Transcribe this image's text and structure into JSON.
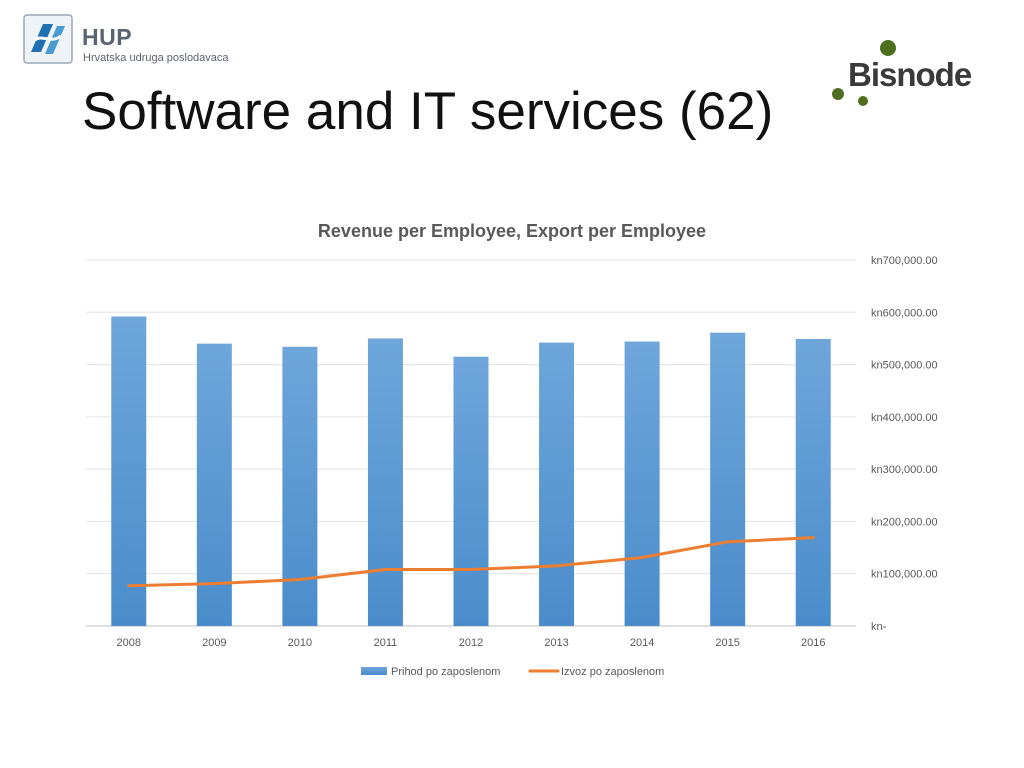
{
  "header": {
    "hup_name": "HUP",
    "hup_subtitle": "Hrvatska udruga poslodavaca",
    "bisnode_logo_text": "Bisnode",
    "page_title": "Software and IT services (62)"
  },
  "colors": {
    "bar": "#5b9bd5",
    "line": "#ed7d31",
    "bisnode_green": "#4f6e1f"
  },
  "chart_data": {
    "type": "bar",
    "title": "Revenue per Employee, Export per Employee",
    "categories": [
      "2008",
      "2009",
      "2010",
      "2011",
      "2012",
      "2013",
      "2014",
      "2015",
      "2016"
    ],
    "series": [
      {
        "name": "Prihod po zaposlenom",
        "type": "bar",
        "values": [
          592000,
          540000,
          534000,
          550000,
          515000,
          542000,
          544000,
          561000,
          549000
        ]
      },
      {
        "name": "Izvoz po zaposlenom",
        "type": "line",
        "values": [
          77000,
          81000,
          89000,
          108000,
          108000,
          115000,
          131000,
          161000,
          169000
        ]
      }
    ],
    "ylim": [
      0,
      700000
    ],
    "yticks": [
      0,
      100000,
      200000,
      300000,
      400000,
      500000,
      600000,
      700000
    ],
    "ytick_labels": [
      "kn-",
      "kn100,000.00",
      "kn200,000.00",
      "kn300,000.00",
      "kn400,000.00",
      "kn500,000.00",
      "kn600,000.00",
      "kn700,000.00"
    ],
    "y_axis_side": "right",
    "grid": true,
    "legend_position": "bottom"
  }
}
